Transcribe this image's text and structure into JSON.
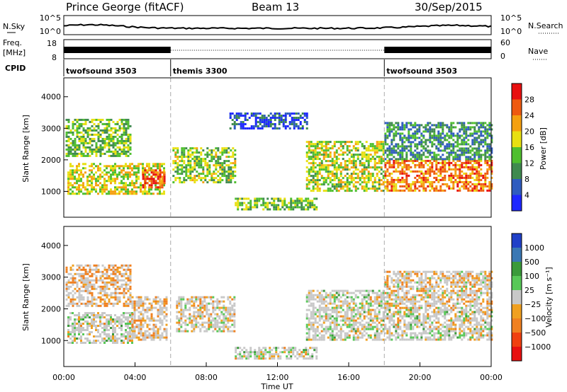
{
  "header": {
    "station": "Prince George (fitACF)",
    "beam": "Beam 13",
    "date": "30/Sep/2015"
  },
  "noise_panel": {
    "left_label": "N.Sky",
    "right_label": "N.Search",
    "left_ticks": [
      "10^5",
      "10^0"
    ],
    "right_ticks": [
      "10^5",
      "10^0"
    ]
  },
  "freq_panel": {
    "left_label_1": "Freq.",
    "left_label_2": "[MHz]",
    "right_label": "Nave",
    "left_ticks": [
      "18",
      "8"
    ],
    "right_ticks": [
      "60",
      "0"
    ]
  },
  "cpid_panel": {
    "label": "CPID",
    "segments": [
      {
        "name": "twofsound 3503",
        "start": 0,
        "end": 6
      },
      {
        "name": "themis 3300",
        "start": 6,
        "end": 18
      },
      {
        "name": "twofsound 3503",
        "start": 18,
        "end": 24
      }
    ]
  },
  "chart_data": [
    {
      "type": "heatmap",
      "quantity": "Power",
      "ylabel": "Slant Range [km]",
      "x_range_hours": [
        0,
        24
      ],
      "ylim": [
        180,
        4600
      ],
      "yticks": [
        1000,
        2000,
        3000,
        4000
      ],
      "colorbar_label": "Power [dB]",
      "colorbar_ticks": [
        "4",
        "8",
        "12",
        "16",
        "20",
        "24",
        "28"
      ],
      "colorbar_colors": [
        "#1e28ff",
        "#2f5cbf",
        "#3f8a4f",
        "#4fbf2f",
        "#e8e012",
        "#f5a010",
        "#ee5a10",
        "#e81010"
      ],
      "echo_regions": [
        {
          "t0": 0.2,
          "t1": 5.6,
          "r0": 900,
          "r1": 1900,
          "level": 18
        },
        {
          "t0": 0.1,
          "t1": 3.8,
          "r0": 2100,
          "r1": 3300,
          "level": 14
        },
        {
          "t0": 4.4,
          "t1": 5.7,
          "r0": 1100,
          "r1": 1700,
          "level": 27
        },
        {
          "t0": 6.1,
          "t1": 9.6,
          "r0": 1300,
          "r1": 2400,
          "level": 15
        },
        {
          "t0": 9.6,
          "t1": 14.2,
          "r0": 400,
          "r1": 800,
          "level": 14
        },
        {
          "t0": 9.3,
          "t1": 13.7,
          "r0": 3000,
          "r1": 3500,
          "level": 5
        },
        {
          "t0": 13.6,
          "t1": 18.0,
          "r0": 1000,
          "r1": 2600,
          "level": 17
        },
        {
          "t0": 18.0,
          "t1": 24.0,
          "r0": 1000,
          "r1": 2000,
          "level": 24
        },
        {
          "t0": 18.0,
          "t1": 24.0,
          "r0": 2000,
          "r1": 3200,
          "level": 10
        }
      ]
    },
    {
      "type": "heatmap",
      "quantity": "Velocity",
      "ylabel": "Slant Range [km]",
      "xlabel": "Time UT",
      "x_range_hours": [
        0,
        24
      ],
      "xticks": [
        "00:00",
        "04:00",
        "08:00",
        "12:00",
        "16:00",
        "20:00",
        "00:00"
      ],
      "ylim": [
        180,
        4600
      ],
      "yticks": [
        1000,
        2000,
        3000,
        4000
      ],
      "colorbar_label": "Velocity [m s⁻¹]",
      "colorbar_ticks": [
        "1000",
        "500",
        "100",
        "25",
        "−25",
        "−100",
        "−500",
        "−1000"
      ],
      "colorbar_colors": [
        "#2040c8",
        "#3a78b4",
        "#3a9a3a",
        "#58c858",
        "#c8c8c8",
        "#f0a020",
        "#f08020",
        "#f04010",
        "#e81010"
      ],
      "echo_regions": [
        {
          "t0": 0.2,
          "t1": 3.8,
          "r0": 900,
          "r1": 1900,
          "velocity": 0
        },
        {
          "t0": 0.1,
          "t1": 3.8,
          "r0": 2100,
          "r1": 3400,
          "velocity": -300
        },
        {
          "t0": 3.8,
          "t1": 5.8,
          "r0": 1000,
          "r1": 2400,
          "velocity": -200
        },
        {
          "t0": 6.3,
          "t1": 9.6,
          "r0": 1300,
          "r1": 2400,
          "velocity": -100
        },
        {
          "t0": 9.6,
          "t1": 14.2,
          "r0": 400,
          "r1": 800,
          "velocity": 0
        },
        {
          "t0": 13.6,
          "t1": 18.0,
          "r0": 1000,
          "r1": 2600,
          "velocity": 0
        },
        {
          "t0": 18.0,
          "t1": 24.0,
          "r0": 1000,
          "r1": 2000,
          "velocity": 0
        },
        {
          "t0": 18.0,
          "t1": 24.0,
          "r0": 2000,
          "r1": 3200,
          "velocity": -150
        }
      ]
    }
  ]
}
